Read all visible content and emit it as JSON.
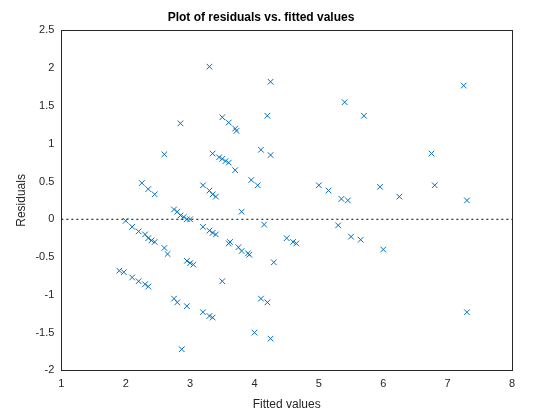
{
  "chart_data": {
    "type": "scatter",
    "title": "Plot of residuals vs. fitted values",
    "x_label": "Fitted values",
    "y_label": "Residuals",
    "x": [
      1.9,
      1.97,
      2.1,
      2.2,
      2.3,
      2.35,
      2.0,
      2.1,
      2.2,
      2.3,
      2.35,
      2.4,
      2.45,
      2.6,
      2.65,
      2.25,
      2.35,
      2.45,
      2.6,
      2.75,
      2.8,
      2.85,
      2.9,
      2.95,
      3.0,
      2.75,
      2.8,
      2.95,
      2.87,
      2.95,
      3.05,
      3.0,
      2.85,
      3.2,
      3.3,
      3.35,
      3.3,
      3.2,
      3.3,
      3.35,
      3.4,
      3.35,
      3.45,
      3.5,
      3.6,
      3.5,
      3.55,
      3.6,
      3.7,
      3.72,
      3.6,
      3.62,
      3.5,
      3.3,
      3.35,
      3.4,
      3.2,
      3.7,
      3.8,
      3.75,
      3.8,
      3.9,
      3.92,
      3.95,
      4.05,
      4.0,
      4.1,
      4.2,
      4.25,
      4.15,
      4.1,
      4.2,
      4.25,
      4.25,
      4.3,
      4.5,
      4.6,
      4.65,
      5.0,
      5.15,
      5.3,
      5.35,
      5.45,
      5.4,
      5.5,
      5.65,
      5.7,
      5.95,
      6.0,
      6.25,
      6.75,
      6.8,
      7.25,
      7.3,
      7.3
    ],
    "values": [
      -0.68,
      -0.7,
      -0.77,
      -0.82,
      -0.86,
      -0.89,
      -0.02,
      -0.1,
      -0.16,
      -0.2,
      -0.25,
      -0.28,
      -0.3,
      -0.38,
      -0.46,
      0.48,
      0.4,
      0.33,
      0.86,
      0.13,
      0.1,
      0.05,
      0.03,
      0.0,
      0.0,
      -1.05,
      -1.1,
      -1.15,
      -1.72,
      -0.55,
      -0.6,
      -0.58,
      1.27,
      -1.23,
      -1.28,
      -1.3,
      2.02,
      0.45,
      0.38,
      0.33,
      0.3,
      0.87,
      0.82,
      1.35,
      1.28,
      0.8,
      0.77,
      0.75,
      1.2,
      1.17,
      -0.32,
      -0.3,
      -0.82,
      -0.15,
      -0.18,
      -0.2,
      -0.1,
      0.65,
      0.1,
      -0.37,
      -0.42,
      -0.45,
      -0.47,
      0.52,
      0.45,
      -1.5,
      -1.05,
      -1.1,
      -1.58,
      -0.07,
      0.92,
      1.37,
      0.85,
      1.82,
      -0.57,
      -0.25,
      -0.3,
      -0.32,
      0.45,
      0.38,
      -0.08,
      0.27,
      0.25,
      1.55,
      -0.23,
      -0.27,
      1.37,
      0.43,
      -0.4,
      0.3,
      0.87,
      0.45,
      1.77,
      0.25,
      -1.23
    ],
    "color": "#0072bd",
    "marker": "x",
    "reference_line": {
      "value": 0,
      "line_style": "dotted",
      "color": "#000000"
    },
    "xlim": [
      1,
      8
    ],
    "xticks": [
      1,
      2,
      3,
      4,
      5,
      6,
      7,
      8
    ],
    "ylim": [
      -2,
      2.5
    ],
    "yticks": [
      -2,
      -1.5,
      -1,
      -0.5,
      0,
      0.5,
      1,
      1.5,
      2,
      2.5
    ],
    "grid": false
  }
}
